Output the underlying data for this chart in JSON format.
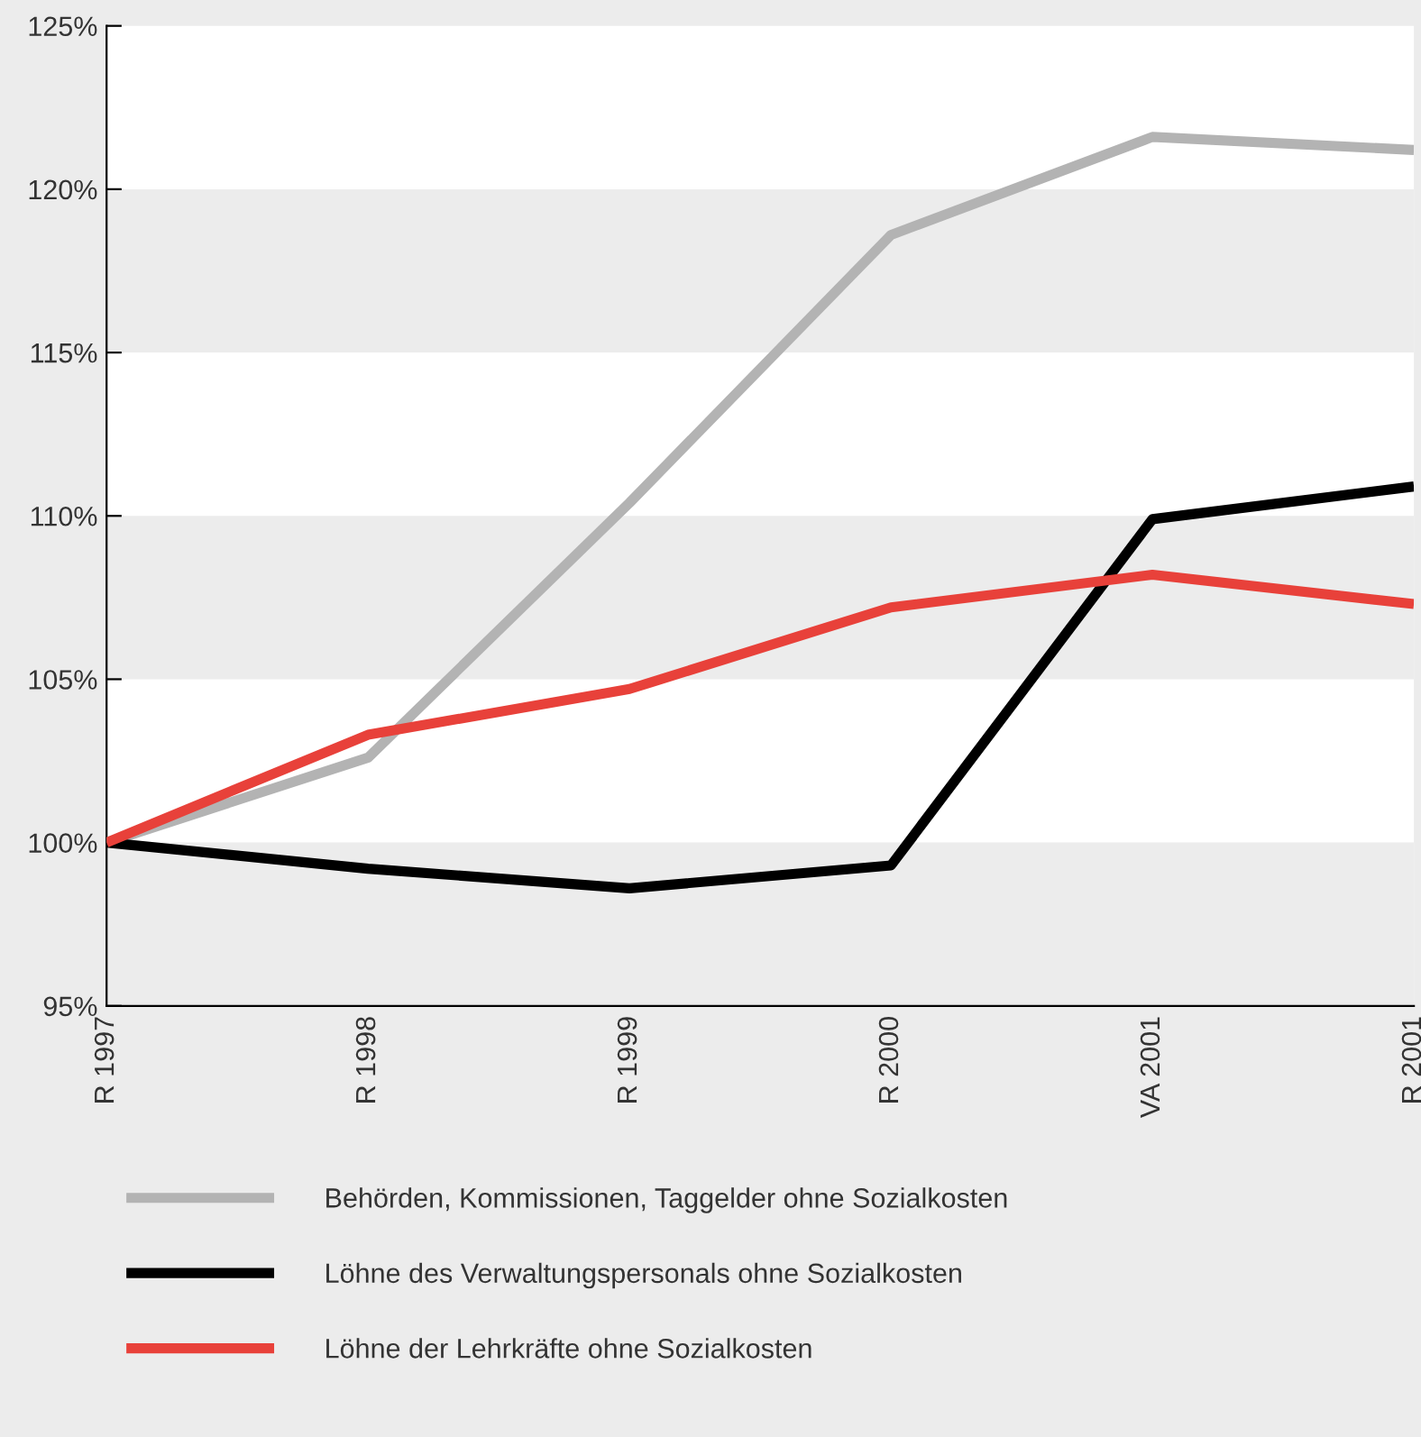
{
  "chart_data": {
    "type": "line",
    "categories": [
      "R 1997",
      "R 1998",
      "R 1999",
      "R 2000",
      "VA 2001",
      "R 2001"
    ],
    "series": [
      {
        "name": "Behörden, Kommissionen, Taggelder ohne Sozialkosten",
        "color": "#b3b3b3",
        "values": [
          100,
          102.6,
          110.4,
          118.6,
          121.6,
          121.2
        ]
      },
      {
        "name": "Löhne des Verwaltungspersonals ohne Sozialkosten",
        "color": "#000000",
        "values": [
          100,
          99.2,
          98.6,
          99.3,
          109.9,
          110.9
        ]
      },
      {
        "name": "Löhne der Lehrkräfte ohne Sozialkosten",
        "color": "#e8413a",
        "values": [
          100,
          103.3,
          104.7,
          107.2,
          108.2,
          107.3
        ]
      }
    ],
    "ylim": [
      95,
      125
    ],
    "yticks": [
      {
        "value": 95,
        "label": "95%"
      },
      {
        "value": 100,
        "label": "100%"
      },
      {
        "value": 105,
        "label": "105%"
      },
      {
        "value": 110,
        "label": "110%"
      },
      {
        "value": 115,
        "label": "115%"
      },
      {
        "value": 120,
        "label": "120%"
      },
      {
        "value": 125,
        "label": "125%"
      }
    ],
    "bands": [
      {
        "axis": "y",
        "from": 95,
        "to": 100,
        "color": "#ececec"
      },
      {
        "axis": "y",
        "from": 105,
        "to": 110,
        "color": "#ececec"
      },
      {
        "axis": "y",
        "from": 115,
        "to": 120,
        "color": "#ececec"
      }
    ],
    "legend": "bottom",
    "marker": "none",
    "line_style": "solid",
    "grid": false
  }
}
